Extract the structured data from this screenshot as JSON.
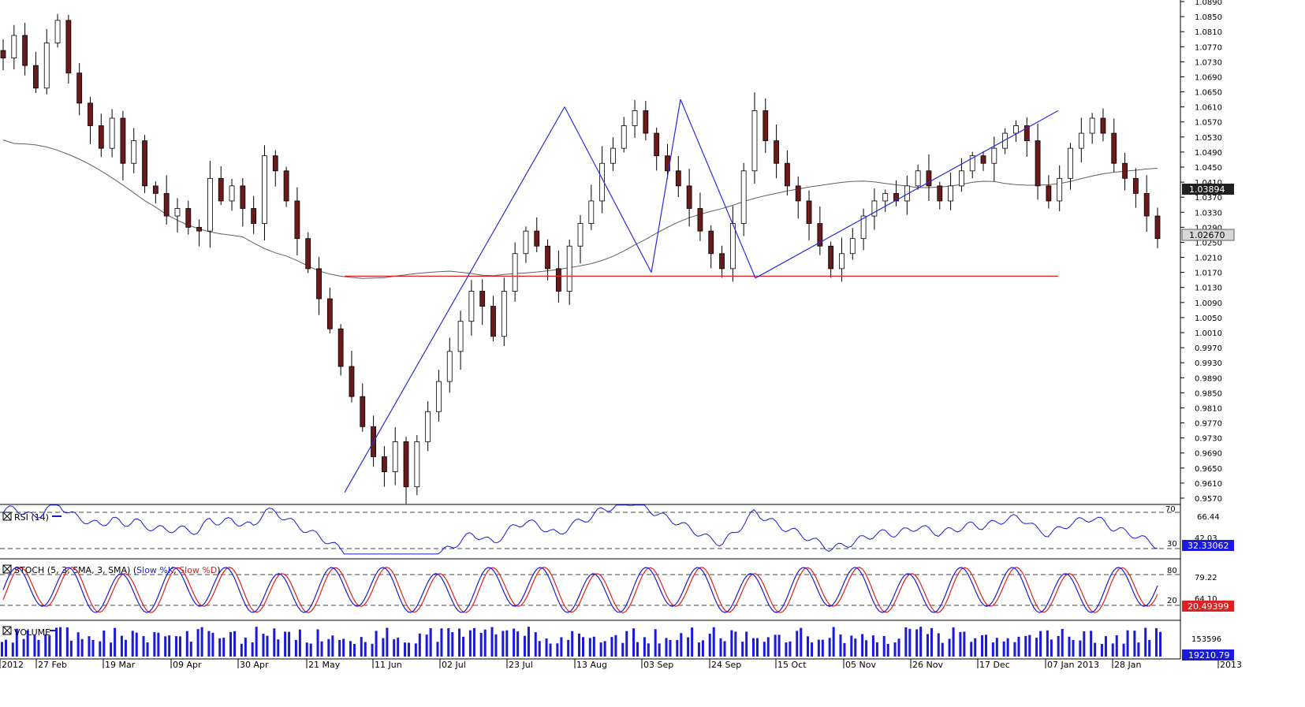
{
  "chart_data": [
    {
      "type": "candlestick",
      "panel": "price",
      "y_ticks": [
        "1.0890",
        "1.0850",
        "1.0810",
        "1.0770",
        "1.0730",
        "1.0690",
        "1.0650",
        "1.0610",
        "1.0570",
        "1.0530",
        "1.0490",
        "1.0450",
        "1.0410",
        "1.0370",
        "1.0330",
        "1.0290",
        "1.0250",
        "1.0210",
        "1.0170",
        "1.0130",
        "1.0090",
        "1.0050",
        "1.0010",
        "0.9970",
        "0.9930",
        "0.9890",
        "0.9850",
        "0.9810",
        "0.9770",
        "0.9730",
        "0.9690",
        "0.9650",
        "0.9610",
        "0.9570"
      ],
      "ylim": [
        0.956,
        1.0895
      ],
      "x_labels": [
        "2012",
        "27 Feb",
        "19 Mar",
        "09 Apr",
        "30 Apr",
        "21 May",
        "11 Jun",
        "02 Jul",
        "23 Jul",
        "13 Aug",
        "03 Sep",
        "24 Sep",
        "15 Oct",
        "05 Nov",
        "26 Nov",
        "17 Dec",
        "07 Jan 2013",
        "28 Jan",
        "2013"
      ],
      "ma_value_tag": "1.03894",
      "last_price_tag": "1.02670",
      "support_level": 1.016,
      "series_close_approx": [
        1.074,
        1.08,
        1.072,
        1.066,
        1.078,
        1.084,
        1.07,
        1.062,
        1.056,
        1.05,
        1.058,
        1.046,
        1.052,
        1.04,
        1.038,
        1.032,
        1.034,
        1.029,
        1.028,
        1.042,
        1.036,
        1.04,
        1.034,
        1.03,
        1.048,
        1.044,
        1.036,
        1.026,
        1.018,
        1.01,
        1.002,
        0.992,
        0.984,
        0.976,
        0.968,
        0.964,
        0.972,
        0.96,
        0.972,
        0.98,
        0.988,
        0.996,
        1.004,
        1.012,
        1.008,
        1.0,
        1.012,
        1.022,
        1.028,
        1.024,
        1.018,
        1.012,
        1.024,
        1.03,
        1.036,
        1.046,
        1.05,
        1.056,
        1.06,
        1.054,
        1.048,
        1.044,
        1.04,
        1.034,
        1.028,
        1.022,
        1.018,
        1.03,
        1.044,
        1.06,
        1.052,
        1.046,
        1.04,
        1.036,
        1.03,
        1.024,
        1.018,
        1.022,
        1.026,
        1.032,
        1.036,
        1.038,
        1.036,
        1.04,
        1.044,
        1.04,
        1.036,
        1.04,
        1.044,
        1.048,
        1.046,
        1.05,
        1.054,
        1.056,
        1.052,
        1.04,
        1.036,
        1.042,
        1.05,
        1.054,
        1.058,
        1.054,
        1.046,
        1.042,
        1.038,
        1.032,
        1.026
      ]
    },
    {
      "type": "line",
      "panel": "rsi",
      "title": "RSI (14)",
      "levels": [
        "70",
        "30"
      ],
      "axis_tick": "66.44",
      "axis_tick_2": "42.03",
      "value_tag": "32.33062"
    },
    {
      "type": "line",
      "panel": "stoch",
      "title": "STOCH (5, 3, SMA, 3, SMA)",
      "series": [
        {
          "name": "Slow %K",
          "color": "#1a1adc"
        },
        {
          "name": "Slow %D",
          "color": "#e02020"
        }
      ],
      "levels": [
        "80",
        "20"
      ],
      "axis_tick": "79.22",
      "axis_tick_2": "64.10",
      "value_tag": "20.49399"
    },
    {
      "type": "bar",
      "panel": "volume",
      "title": "VOLUME",
      "axis_tick": "153596",
      "value_tag": "19210.79"
    }
  ],
  "colors": {
    "bull_candle": "#ffffff",
    "bear_candle": "#6a1a1a",
    "trendline": "#2a2ae0",
    "support": "#e02020",
    "ma": "#606060",
    "volume": "#1a1adc",
    "tag_blue": "#1a1adc",
    "tag_red": "#e02020",
    "tag_dark": "#202020"
  }
}
